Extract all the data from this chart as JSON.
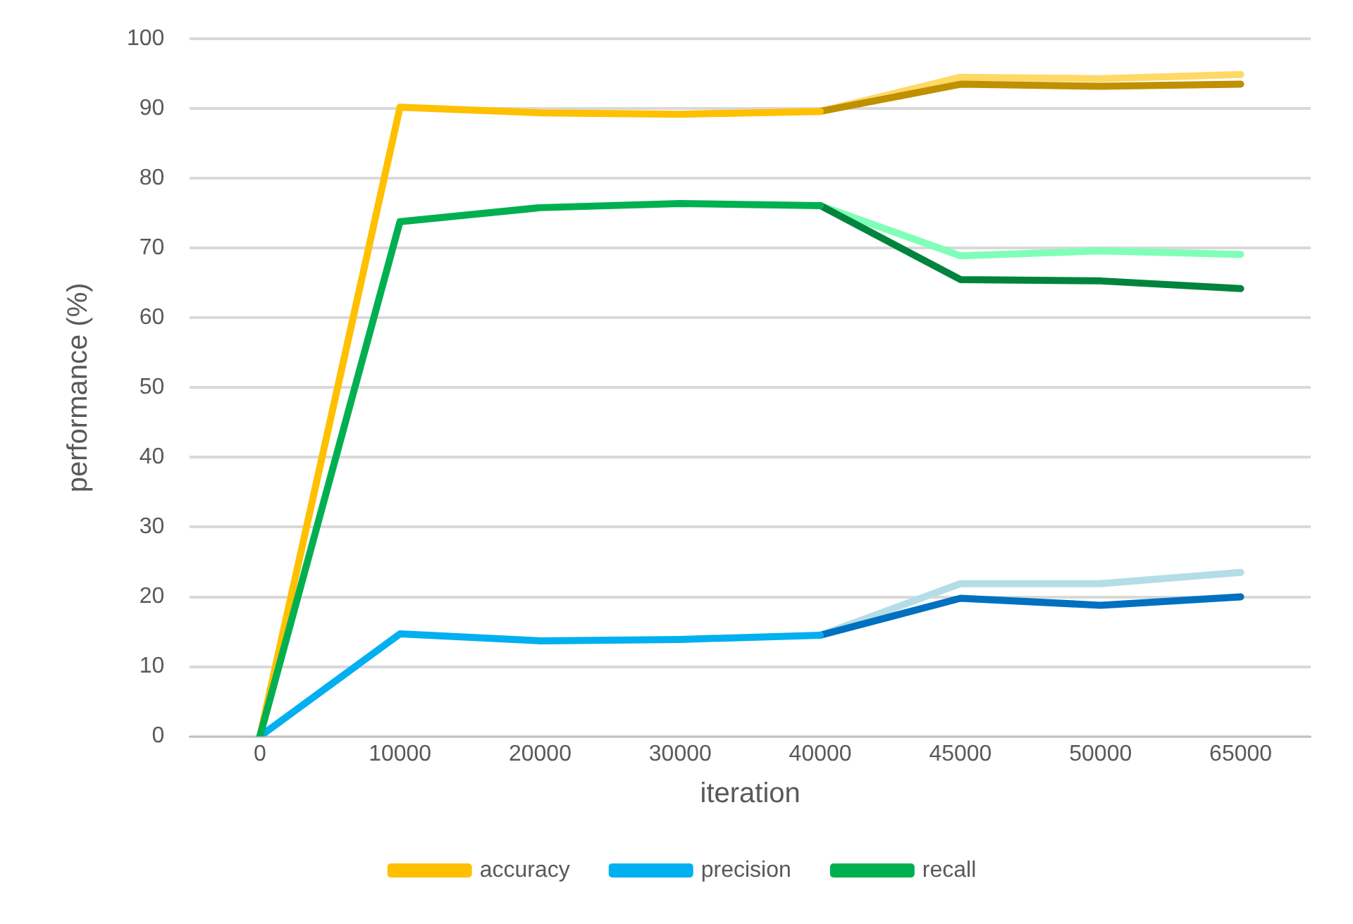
{
  "chart_data": {
    "type": "line",
    "xlabel": "iteration",
    "ylabel": "performance (%)",
    "categories": [
      "0",
      "10000",
      "20000",
      "30000",
      "40000",
      "45000",
      "50000",
      "65000"
    ],
    "ylim": [
      0,
      100
    ],
    "yticks": [
      0,
      10,
      20,
      30,
      40,
      50,
      60,
      70,
      80,
      90,
      100
    ],
    "grid": "y",
    "legend": "bottom",
    "marker": "none",
    "line_style": "solid",
    "series": [
      {
        "color": "#ffd966",
        "values": [
          null,
          null,
          null,
          null,
          89.6,
          94.5,
          94.3,
          94.9
        ]
      },
      {
        "color": "#bf9000",
        "values": [
          null,
          null,
          null,
          null,
          89.6,
          93.5,
          93.2,
          93.5
        ]
      },
      {
        "color": "#b4dde8",
        "values": [
          null,
          null,
          null,
          null,
          14.5,
          21.9,
          21.9,
          23.5
        ]
      },
      {
        "color": "#0070c0",
        "values": [
          null,
          null,
          null,
          null,
          14.5,
          19.8,
          18.8,
          20.0
        ]
      },
      {
        "color": "#7fffb8",
        "values": [
          null,
          null,
          null,
          null,
          76.1,
          68.9,
          69.6,
          69.1
        ]
      },
      {
        "color": "#00843d",
        "values": [
          null,
          null,
          null,
          null,
          76.1,
          65.5,
          65.3,
          64.2
        ]
      },
      {
        "name": "accuracy",
        "color": "#ffc000",
        "values": [
          0,
          90.2,
          89.4,
          89.2,
          89.6,
          null,
          null,
          null
        ]
      },
      {
        "name": "precision",
        "color": "#00b0f0",
        "values": [
          0,
          14.7,
          13.7,
          13.9,
          14.5,
          null,
          null,
          null
        ]
      },
      {
        "name": "recall",
        "color": "#00b050",
        "values": [
          0,
          73.8,
          75.8,
          76.4,
          76.1,
          null,
          null,
          null
        ]
      }
    ]
  }
}
